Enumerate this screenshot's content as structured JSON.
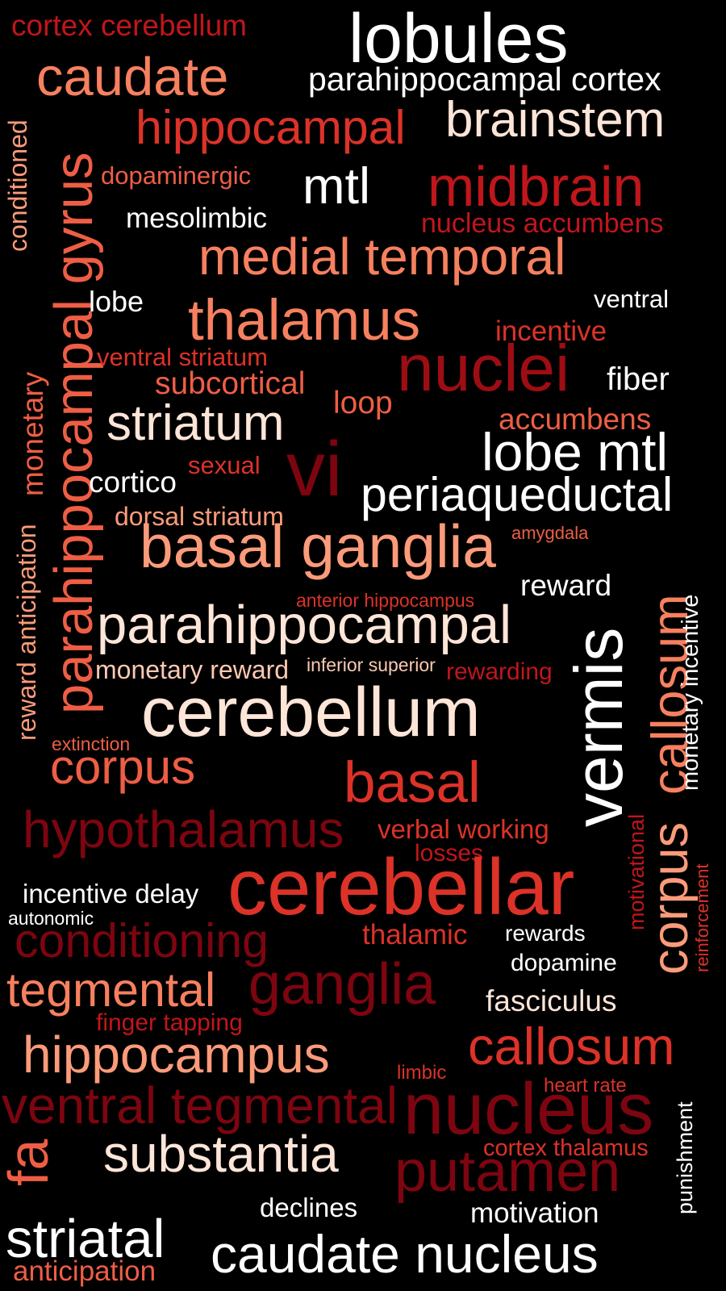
{
  "palette": {
    "white": "#ffffff",
    "cream": "#fde5d8",
    "pale": "#fcc9b2",
    "salmon": "#fb9b7a",
    "coral": "#f6805f",
    "orange_red": "#ee5e45",
    "red": "#dc3228",
    "crimson": "#c0161b",
    "dark_red": "#9d0d14",
    "maroon": "#7d0510"
  },
  "words": [
    {
      "text": "cortex cerebellum",
      "color": "crimson"
    },
    {
      "text": "lobules",
      "color": "white"
    },
    {
      "text": "caudate",
      "color": "coral"
    },
    {
      "text": "parahippocampal cortex",
      "color": "white"
    },
    {
      "text": "hippocampal",
      "color": "red"
    },
    {
      "text": "brainstem",
      "color": "cream"
    },
    {
      "text": "conditioned",
      "color": "salmon"
    },
    {
      "text": "parahippocampal gyrus",
      "color": "orange_red"
    },
    {
      "text": "dopaminergic",
      "color": "orange_red"
    },
    {
      "text": "mtl",
      "color": "white"
    },
    {
      "text": "midbrain",
      "color": "crimson"
    },
    {
      "text": "mesolimbic",
      "color": "white"
    },
    {
      "text": "nucleus accumbens",
      "color": "crimson"
    },
    {
      "text": "medial temporal",
      "color": "coral"
    },
    {
      "text": "lobe",
      "color": "white"
    },
    {
      "text": "ventral",
      "color": "white"
    },
    {
      "text": "thalamus",
      "color": "coral"
    },
    {
      "text": "incentive",
      "color": "red"
    },
    {
      "text": "monetary",
      "color": "orange_red"
    },
    {
      "text": "ventral striatum",
      "color": "red"
    },
    {
      "text": "nuclei",
      "color": "dark_red"
    },
    {
      "text": "subcortical",
      "color": "orange_red"
    },
    {
      "text": "fiber",
      "color": "white"
    },
    {
      "text": "loop",
      "color": "orange_red"
    },
    {
      "text": "accumbens",
      "color": "orange_red"
    },
    {
      "text": "striatum",
      "color": "cream"
    },
    {
      "text": "lobe mtl",
      "color": "white"
    },
    {
      "text": "vi",
      "color": "maroon"
    },
    {
      "text": "sexual",
      "color": "red"
    },
    {
      "text": "cortico",
      "color": "white"
    },
    {
      "text": "periaqueductal",
      "color": "white"
    },
    {
      "text": "reward anticipation",
      "color": "salmon"
    },
    {
      "text": "dorsal striatum",
      "color": "salmon"
    },
    {
      "text": "amygdala",
      "color": "orange_red"
    },
    {
      "text": "basal ganglia",
      "color": "salmon"
    },
    {
      "text": "callosum",
      "color": "coral"
    },
    {
      "text": "monetary incentive",
      "color": "white"
    },
    {
      "text": "reward",
      "color": "white"
    },
    {
      "text": "anterior hippocampus",
      "color": "red"
    },
    {
      "text": "parahippocampal",
      "color": "cream"
    },
    {
      "text": "vermis",
      "color": "white"
    },
    {
      "text": "monetary reward",
      "color": "pale"
    },
    {
      "text": "inferior superior",
      "color": "pale"
    },
    {
      "text": "rewarding",
      "color": "crimson"
    },
    {
      "text": "cerebellum",
      "color": "cream"
    },
    {
      "text": "extinction",
      "color": "orange_red"
    },
    {
      "text": "corpus",
      "color": "orange_red"
    },
    {
      "text": "basal",
      "color": "red"
    },
    {
      "text": "corpus",
      "color": "salmon"
    },
    {
      "text": "hypothalamus",
      "color": "maroon"
    },
    {
      "text": "verbal working",
      "color": "red"
    },
    {
      "text": "motivational",
      "color": "crimson"
    },
    {
      "text": "losses",
      "color": "crimson"
    },
    {
      "text": "reinforcement",
      "color": "red"
    },
    {
      "text": "cerebellar",
      "color": "red"
    },
    {
      "text": "incentive delay",
      "color": "white"
    },
    {
      "text": "autonomic",
      "color": "white"
    },
    {
      "text": "conditioning",
      "color": "maroon"
    },
    {
      "text": "thalamic",
      "color": "red"
    },
    {
      "text": "rewards",
      "color": "white"
    },
    {
      "text": "dopamine",
      "color": "white"
    },
    {
      "text": "tegmental",
      "color": "coral"
    },
    {
      "text": "ganglia",
      "color": "maroon"
    },
    {
      "text": "fasciculus",
      "color": "cream"
    },
    {
      "text": "finger tapping",
      "color": "crimson"
    },
    {
      "text": "hippocampus",
      "color": "salmon"
    },
    {
      "text": "callosum",
      "color": "red"
    },
    {
      "text": "limbic",
      "color": "red"
    },
    {
      "text": "heart rate",
      "color": "red"
    },
    {
      "text": "ventral tegmental",
      "color": "maroon"
    },
    {
      "text": "nucleus",
      "color": "maroon"
    },
    {
      "text": "punishment",
      "color": "white"
    },
    {
      "text": "fa",
      "color": "orange_red"
    },
    {
      "text": "substantia",
      "color": "cream"
    },
    {
      "text": "cortex thalamus",
      "color": "red"
    },
    {
      "text": "putamen",
      "color": "maroon"
    },
    {
      "text": "declines",
      "color": "white"
    },
    {
      "text": "motivation",
      "color": "white"
    },
    {
      "text": "striatal",
      "color": "white"
    },
    {
      "text": "caudate nucleus",
      "color": "white"
    },
    {
      "text": "anticipation",
      "color": "orange_red"
    }
  ]
}
